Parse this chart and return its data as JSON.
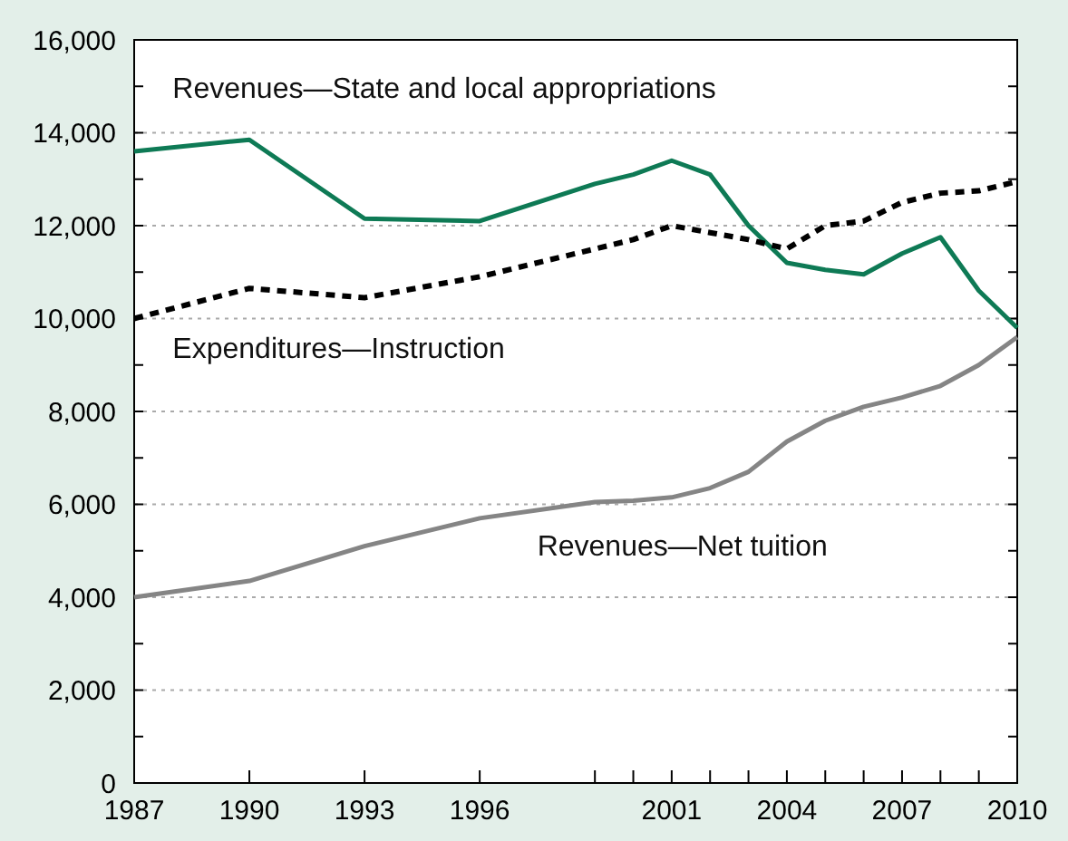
{
  "chart_data": {
    "type": "line",
    "x": [
      1987,
      1990,
      1993,
      1996,
      1999,
      2000,
      2001,
      2002,
      2003,
      2004,
      2005,
      2006,
      2007,
      2008,
      2009,
      2010
    ],
    "xlim": [
      1987,
      2010
    ],
    "xticks": [
      1987,
      1990,
      1993,
      1996,
      {
        "value": 1999,
        "label": null
      },
      {
        "value": 2000,
        "label": null
      },
      2001,
      {
        "value": 2002,
        "label": null
      },
      {
        "value": 2003,
        "label": null
      },
      2004,
      {
        "value": 2005,
        "label": null
      },
      {
        "value": 2006,
        "label": null
      },
      2007,
      {
        "value": 2008,
        "label": null
      },
      {
        "value": 2009,
        "label": null
      },
      2010
    ],
    "ylim": [
      0,
      16000
    ],
    "yticks": [
      0,
      {
        "value": 1000,
        "label": null
      },
      {
        "value": 2000,
        "label": "2,000"
      },
      {
        "value": 3000,
        "label": null
      },
      {
        "value": 4000,
        "label": "4,000"
      },
      {
        "value": 5000,
        "label": null
      },
      {
        "value": 6000,
        "label": "6,000"
      },
      {
        "value": 7000,
        "label": null
      },
      {
        "value": 8000,
        "label": "8,000"
      },
      {
        "value": 9000,
        "label": null
      },
      {
        "value": 10000,
        "label": "10,000"
      },
      {
        "value": 11000,
        "label": null
      },
      {
        "value": 12000,
        "label": "12,000"
      },
      {
        "value": 13000,
        "label": null
      },
      {
        "value": 14000,
        "label": "14,000"
      },
      {
        "value": 15000,
        "label": null
      },
      {
        "value": 16000,
        "label": "16,000"
      }
    ],
    "grid": "y",
    "series": [
      {
        "name": "Revenues—State and local appropriations",
        "color": "#0e7a55",
        "line_style": "solid",
        "values": [
          13600,
          13850,
          12150,
          12100,
          12900,
          13100,
          13400,
          13100,
          12000,
          11200,
          11050,
          10950,
          11400,
          11750,
          10600,
          9800
        ]
      },
      {
        "name": "Expenditures—Instruction",
        "color": "#000000",
        "line_style": "dashed",
        "values": [
          10000,
          10650,
          10450,
          10900,
          11500,
          11700,
          12000,
          11850,
          11700,
          11500,
          12000,
          12100,
          12500,
          12700,
          12750,
          12950
        ]
      },
      {
        "name": "Revenues—Net tuition",
        "color": "#858585",
        "line_style": "solid",
        "values": [
          4000,
          4350,
          5100,
          5700,
          6050,
          6080,
          6150,
          6350,
          6700,
          7350,
          7800,
          8100,
          8300,
          8550,
          9000,
          9600
        ]
      }
    ]
  }
}
